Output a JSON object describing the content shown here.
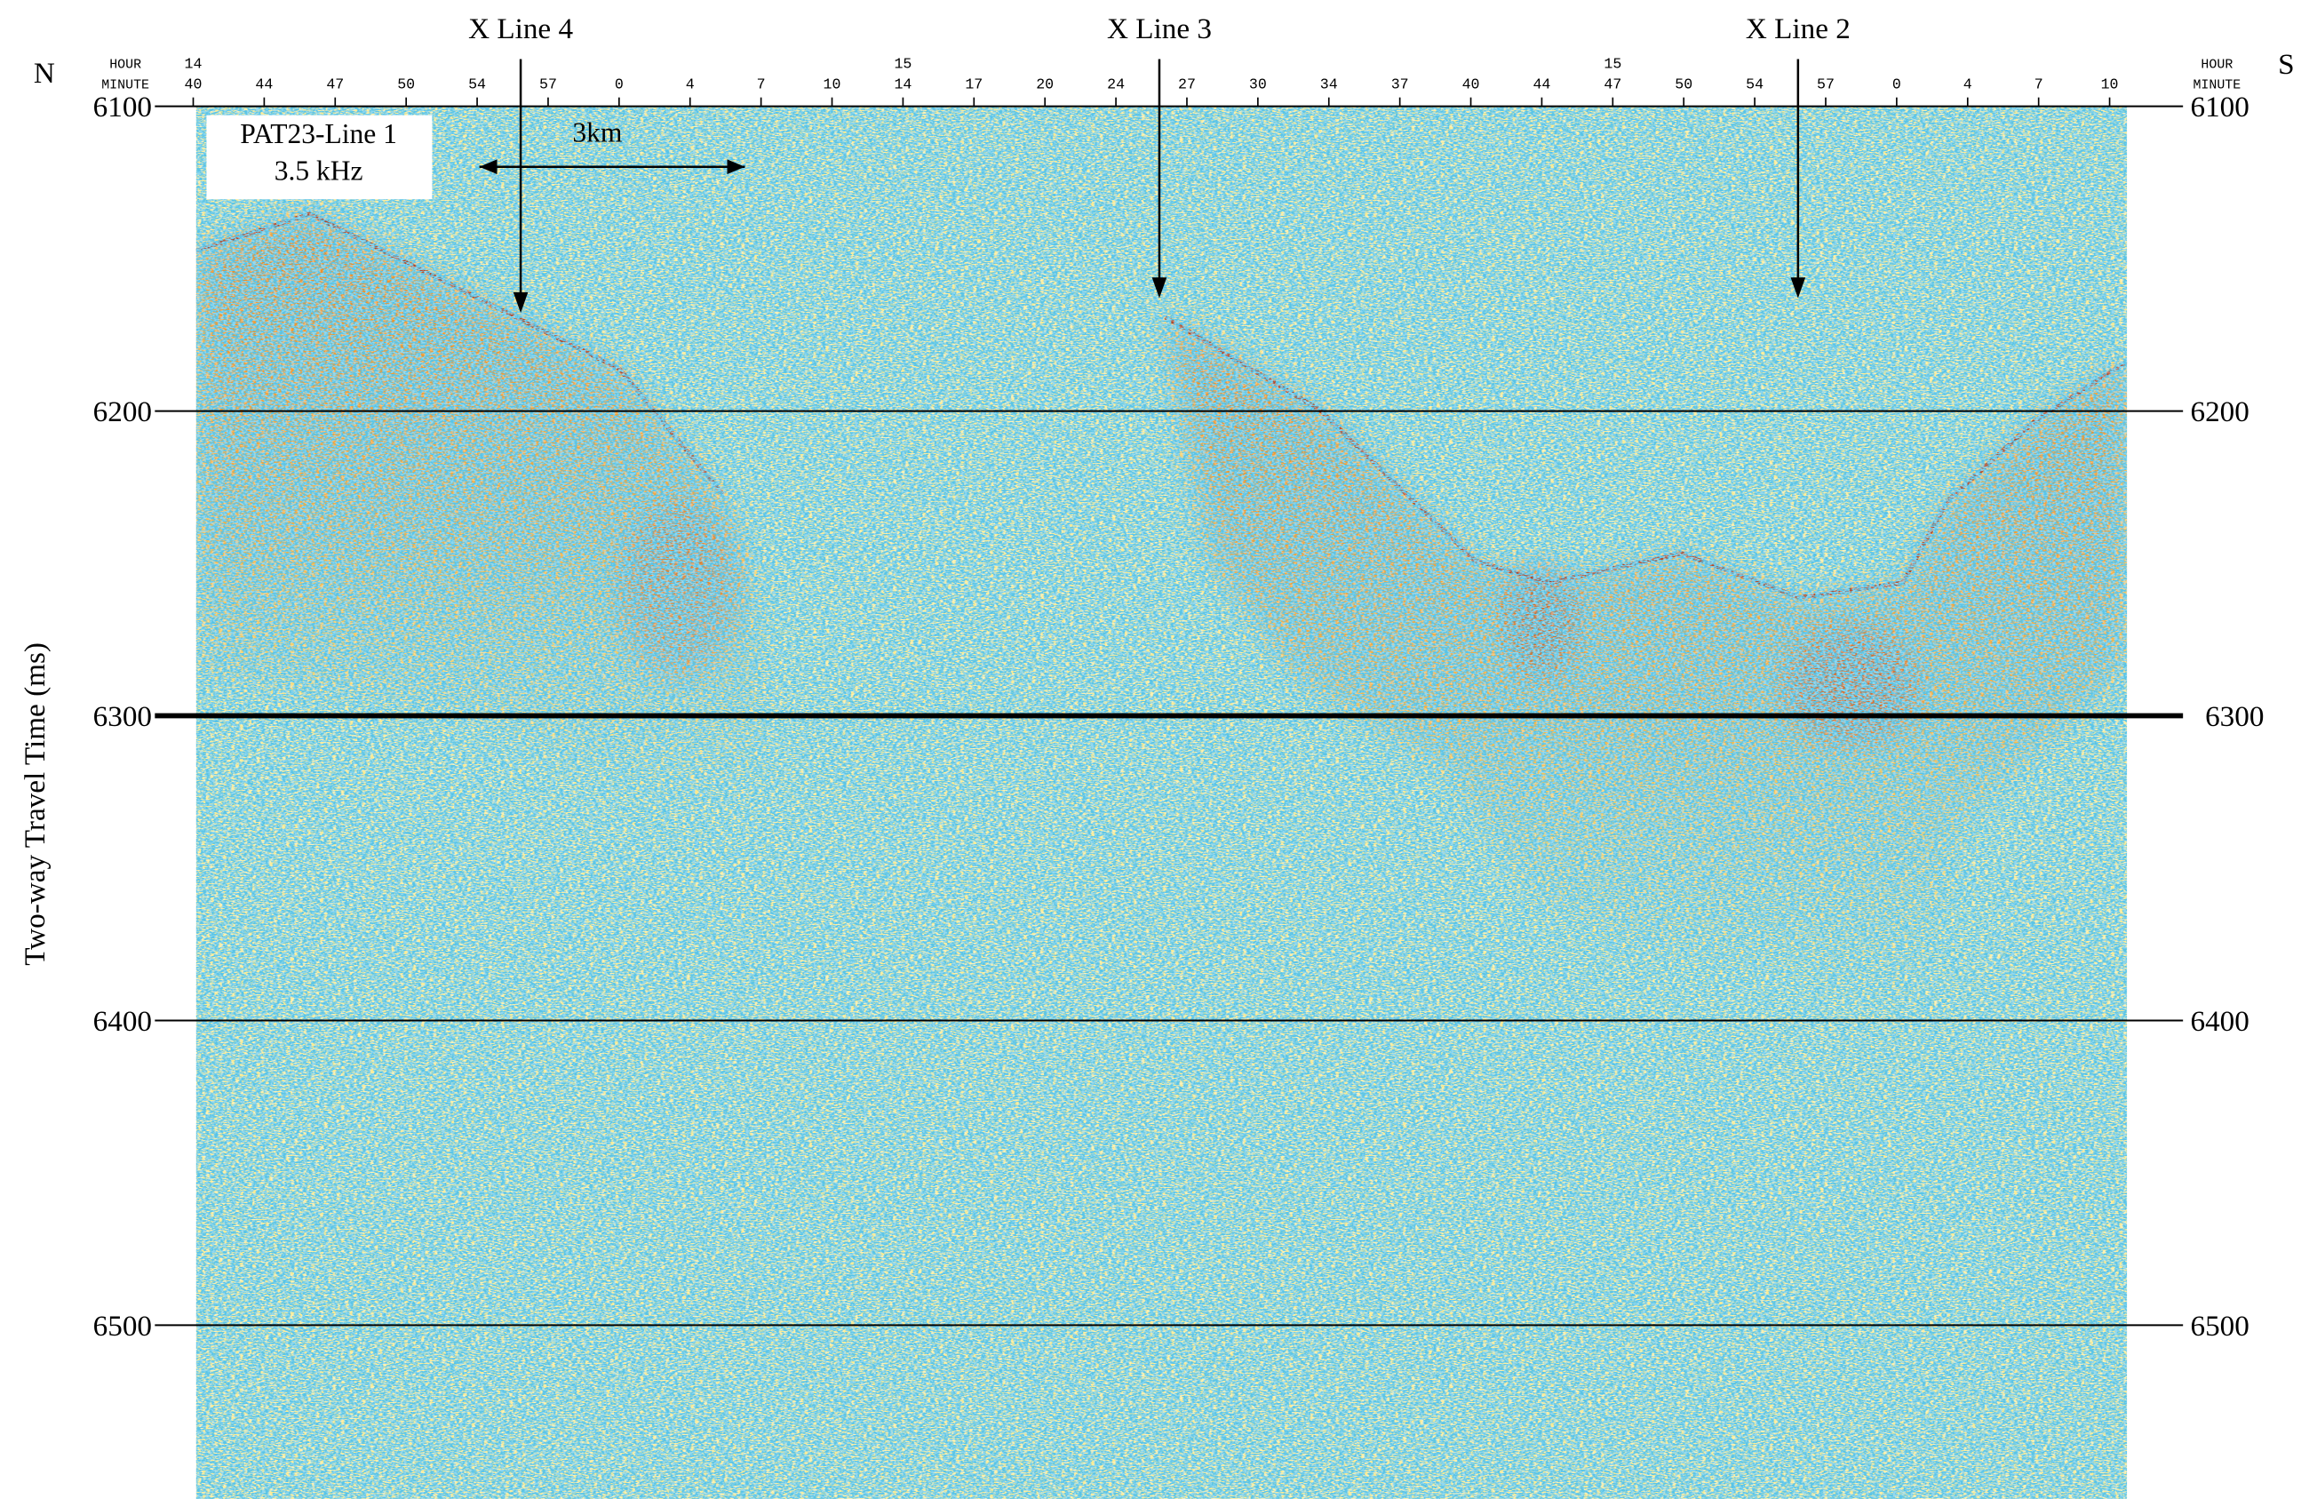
{
  "chart_data": {
    "type": "seismic-profile",
    "title": "PAT23-Line 1",
    "subtitle": "3.5 kHz",
    "ylabel": "Two-way Travel Time (ms)",
    "ylim": [
      6100,
      6557
    ],
    "yticks": [
      6100,
      6200,
      6300,
      6400,
      6500
    ],
    "bold_ytick": 6300,
    "top_axis": {
      "hour_label": "HOUR",
      "minute_label": "MINUTE",
      "minutes": [
        40,
        44,
        47,
        50,
        54,
        57,
        0,
        4,
        7,
        10,
        14,
        17,
        20,
        24,
        27,
        30,
        34,
        37,
        40,
        44,
        47,
        50,
        54,
        57,
        0,
        4,
        7,
        10
      ],
      "hours": [
        14,
        null,
        null,
        null,
        null,
        null,
        null,
        null,
        null,
        null,
        15,
        null,
        null,
        null,
        null,
        null,
        null,
        null,
        null,
        null,
        15,
        null,
        null,
        null,
        null,
        null,
        null,
        null
      ]
    },
    "annotations": [
      "X Line 4",
      "X Line 3",
      "X Line 2"
    ],
    "scale_bar": "3km",
    "left_direction": "N",
    "right_direction": "S"
  }
}
